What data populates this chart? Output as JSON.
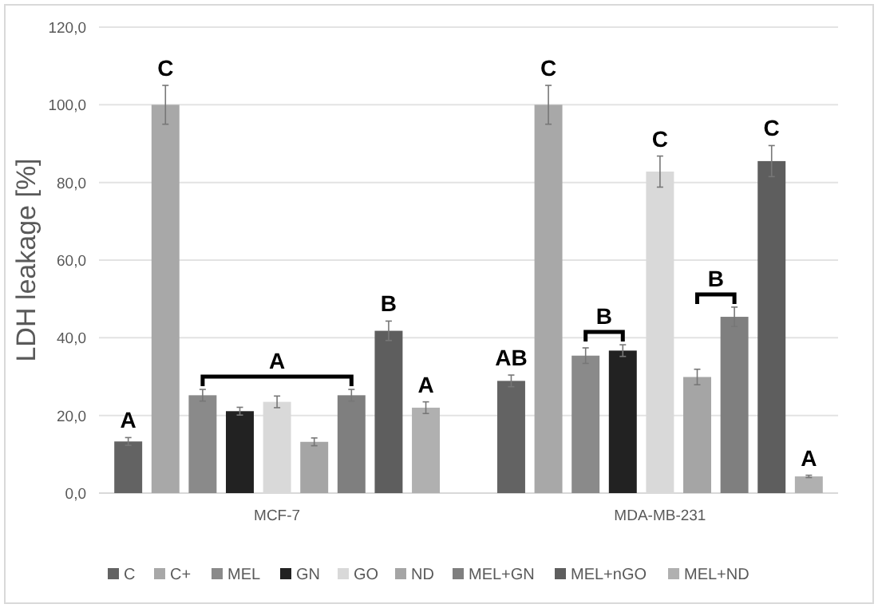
{
  "chart_data": {
    "type": "bar",
    "ylabel": "LDH leakage [%]",
    "categories": [
      "MCF-7",
      "MDA-MB-231"
    ],
    "series": [
      {
        "name": "C",
        "color": "#636363",
        "values": [
          13.3,
          28.9
        ],
        "errors": [
          1,
          1.5
        ],
        "value_labels": [
          "A",
          "AB"
        ]
      },
      {
        "name": "C+",
        "color": "#a8a8a8",
        "values": [
          100,
          100
        ],
        "errors": [
          5,
          5
        ],
        "value_labels": [
          "C",
          "C"
        ]
      },
      {
        "name": "MEL",
        "color": "#8a8a8a",
        "values": [
          25.2,
          35.4
        ],
        "errors": [
          1.5,
          2
        ],
        "value_labels": [
          null,
          null
        ]
      },
      {
        "name": "GN",
        "color": "#222222",
        "values": [
          21.1,
          36.7
        ],
        "errors": [
          1,
          1.5
        ],
        "value_labels": [
          null,
          null
        ]
      },
      {
        "name": "GO",
        "color": "#d9d9d9",
        "values": [
          23.5,
          82.8
        ],
        "errors": [
          1.5,
          4
        ],
        "value_labels": [
          null,
          "C"
        ]
      },
      {
        "name": "ND",
        "color": "#a5a5a5",
        "values": [
          13.2,
          29.9
        ],
        "errors": [
          1,
          2
        ],
        "value_labels": [
          null,
          null
        ]
      },
      {
        "name": "MEL+GN",
        "color": "#7f7f7f",
        "values": [
          25.2,
          45.4
        ],
        "errors": [
          1.5,
          2.5
        ],
        "value_labels": [
          null,
          null
        ]
      },
      {
        "name": "MEL+nGO",
        "color": "#5e5e5e",
        "values": [
          41.8,
          85.5
        ],
        "errors": [
          2.5,
          4
        ],
        "value_labels": [
          "B",
          "C"
        ]
      },
      {
        "name": "MEL+ND",
        "color": "#b0b0b0",
        "values": [
          22,
          4.3
        ],
        "errors": [
          1.5,
          0.3
        ],
        "value_labels": [
          "A",
          "A"
        ]
      }
    ],
    "ylim": [
      0,
      120
    ],
    "yticks": [
      {
        "value": 0,
        "label": "0,0"
      },
      {
        "value": 20,
        "label": "20,0"
      },
      {
        "value": 40,
        "label": "40,0"
      },
      {
        "value": 60,
        "label": "60,0"
      },
      {
        "value": 80,
        "label": "80,0"
      },
      {
        "value": 100,
        "label": "100,0"
      },
      {
        "value": 120,
        "label": "120,0"
      }
    ],
    "annotations": [
      "A",
      "B",
      "B"
    ],
    "grid": "y",
    "legend": "bottom"
  }
}
